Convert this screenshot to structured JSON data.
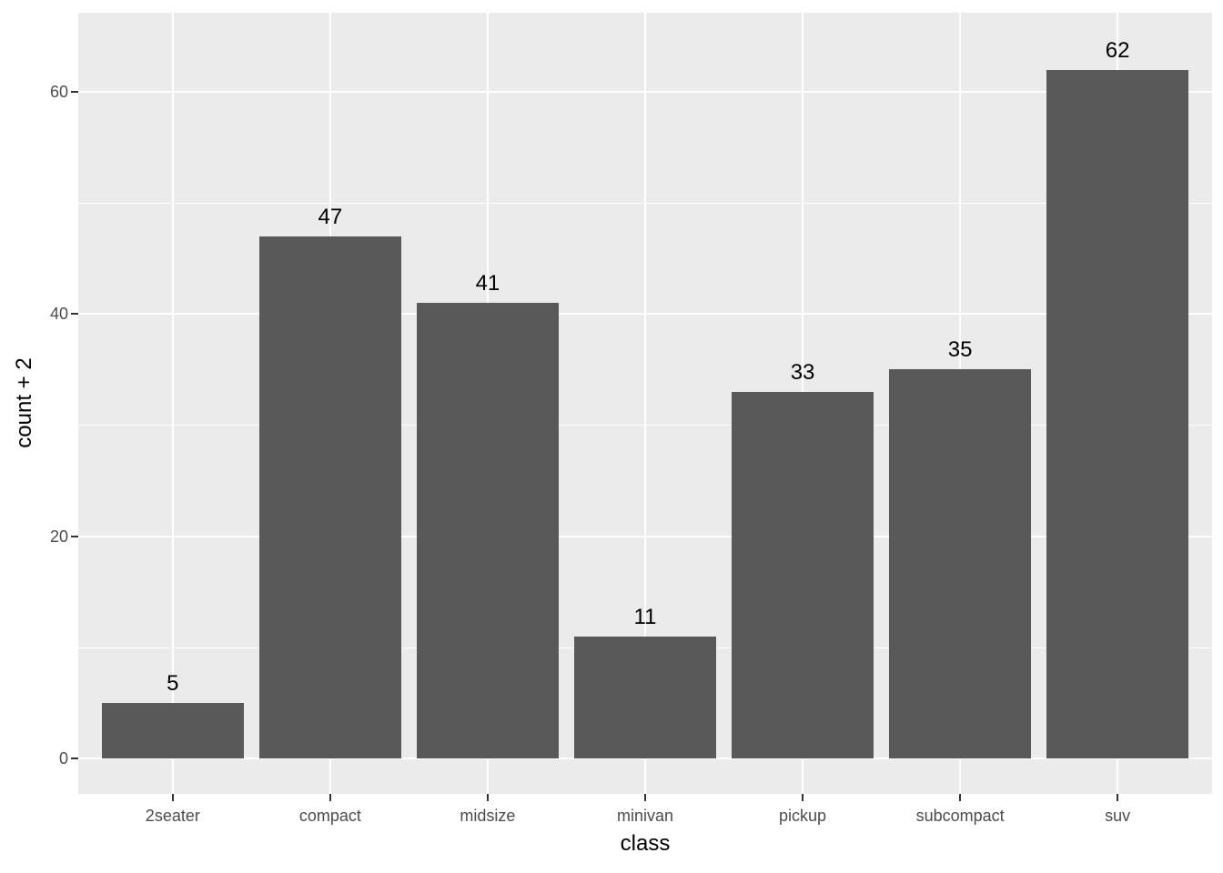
{
  "chart_data": {
    "type": "bar",
    "title": "",
    "categories": [
      "2seater",
      "compact",
      "midsize",
      "minivan",
      "pickup",
      "subcompact",
      "suv"
    ],
    "values": [
      5,
      47,
      41,
      11,
      33,
      35,
      62
    ],
    "bar_labels": [
      "5",
      "47",
      "41",
      "11",
      "33",
      "35",
      "62"
    ],
    "xlabel": "class",
    "ylabel": "count + 2",
    "y_ticks": [
      0,
      20,
      40,
      60
    ],
    "ylim": [
      -3.3,
      67.1
    ],
    "legend": "none",
    "grid": "white major and minor horizontal gridlines, white major vertical gridlines, on gray panel",
    "style": "ggplot2 theme_gray",
    "colors": {
      "bar_fill": "#595959",
      "panel_background": "#EBEBEB",
      "figure_background": "#FFFFFF",
      "grid_line": "#FFFFFF",
      "tick_label": "#4D4D4D",
      "axis_title": "#000000",
      "value_label": "#000000",
      "tick_mark": "#333333"
    }
  }
}
